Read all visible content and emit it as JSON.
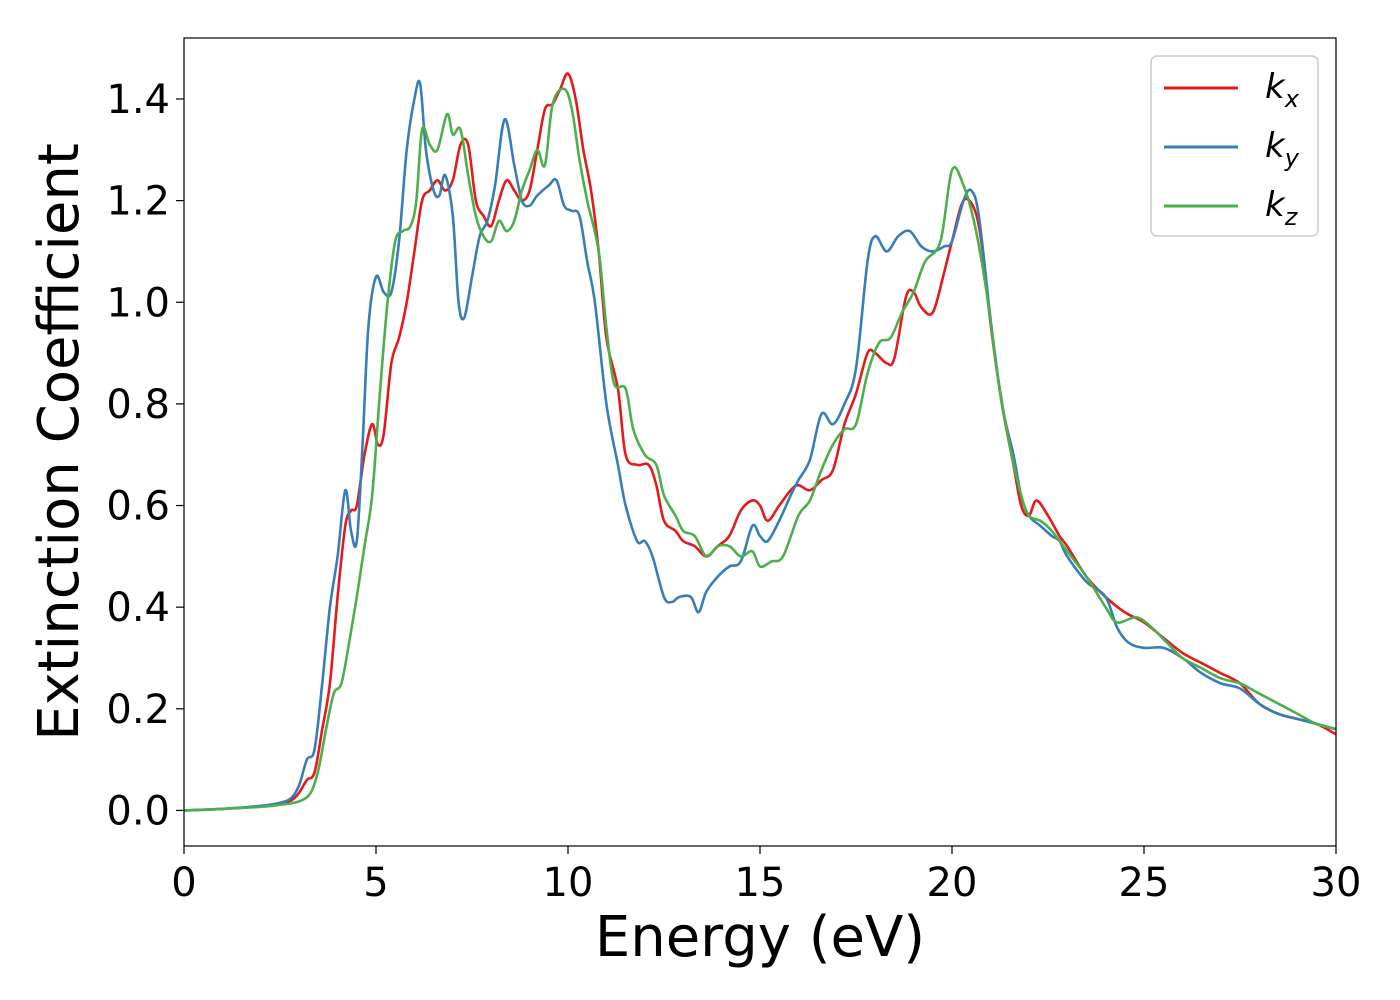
{
  "chart_data": {
    "type": "line",
    "title": "",
    "xlabel": "Energy (eV)",
    "ylabel": "Extinction Coefficient",
    "xlim": [
      0,
      30
    ],
    "ylim": [
      -0.07,
      1.52
    ],
    "xticks": [
      0,
      5,
      10,
      15,
      20,
      25,
      30
    ],
    "yticks": [
      0.0,
      0.2,
      0.4,
      0.6,
      0.8,
      1.0,
      1.2,
      1.4
    ],
    "ytick_labels": [
      "0.0",
      "0.2",
      "0.4",
      "0.6",
      "0.8",
      "1.0",
      "1.2",
      "1.4"
    ],
    "grid": false,
    "legend_position": "top-right",
    "series": [
      {
        "name": "kx",
        "label_base": "k",
        "label_sub": "x",
        "color": "#e41a1c",
        "points": [
          [
            0,
            0.0
          ],
          [
            1,
            0.003
          ],
          [
            2,
            0.008
          ],
          [
            2.5,
            0.013
          ],
          [
            2.8,
            0.02
          ],
          [
            3.0,
            0.035
          ],
          [
            3.2,
            0.06
          ],
          [
            3.4,
            0.075
          ],
          [
            3.6,
            0.16
          ],
          [
            3.8,
            0.25
          ],
          [
            4.0,
            0.42
          ],
          [
            4.2,
            0.56
          ],
          [
            4.35,
            0.59
          ],
          [
            4.5,
            0.6
          ],
          [
            4.7,
            0.7
          ],
          [
            4.9,
            0.76
          ],
          [
            5.05,
            0.72
          ],
          [
            5.2,
            0.74
          ],
          [
            5.4,
            0.88
          ],
          [
            5.6,
            0.93
          ],
          [
            5.8,
            1.0
          ],
          [
            6.0,
            1.1
          ],
          [
            6.2,
            1.2
          ],
          [
            6.4,
            1.22
          ],
          [
            6.6,
            1.24
          ],
          [
            6.8,
            1.22
          ],
          [
            7.0,
            1.24
          ],
          [
            7.2,
            1.31
          ],
          [
            7.4,
            1.31
          ],
          [
            7.6,
            1.2
          ],
          [
            7.8,
            1.17
          ],
          [
            8.0,
            1.15
          ],
          [
            8.2,
            1.2
          ],
          [
            8.4,
            1.24
          ],
          [
            8.6,
            1.22
          ],
          [
            8.8,
            1.2
          ],
          [
            9.0,
            1.22
          ],
          [
            9.2,
            1.3
          ],
          [
            9.4,
            1.38
          ],
          [
            9.6,
            1.39
          ],
          [
            9.8,
            1.42
          ],
          [
            10.0,
            1.45
          ],
          [
            10.2,
            1.4
          ],
          [
            10.4,
            1.3
          ],
          [
            10.6,
            1.22
          ],
          [
            10.8,
            1.1
          ],
          [
            11.0,
            0.93
          ],
          [
            11.3,
            0.83
          ],
          [
            11.5,
            0.7
          ],
          [
            11.8,
            0.68
          ],
          [
            12.1,
            0.68
          ],
          [
            12.3,
            0.64
          ],
          [
            12.5,
            0.57
          ],
          [
            12.8,
            0.55
          ],
          [
            13.0,
            0.53
          ],
          [
            13.3,
            0.52
          ],
          [
            13.6,
            0.5
          ],
          [
            13.9,
            0.52
          ],
          [
            14.2,
            0.54
          ],
          [
            14.5,
            0.59
          ],
          [
            14.8,
            0.61
          ],
          [
            15.0,
            0.6
          ],
          [
            15.2,
            0.57
          ],
          [
            15.5,
            0.6
          ],
          [
            15.8,
            0.63
          ],
          [
            16.0,
            0.64
          ],
          [
            16.3,
            0.63
          ],
          [
            16.6,
            0.65
          ],
          [
            16.9,
            0.67
          ],
          [
            17.2,
            0.76
          ],
          [
            17.5,
            0.82
          ],
          [
            17.8,
            0.9
          ],
          [
            18.0,
            0.9
          ],
          [
            18.3,
            0.88
          ],
          [
            18.5,
            0.89
          ],
          [
            18.8,
            1.01
          ],
          [
            19.0,
            1.02
          ],
          [
            19.2,
            0.99
          ],
          [
            19.5,
            0.98
          ],
          [
            19.8,
            1.06
          ],
          [
            20.0,
            1.12
          ],
          [
            20.3,
            1.2
          ],
          [
            20.6,
            1.18
          ],
          [
            20.8,
            1.1
          ],
          [
            21.0,
            0.96
          ],
          [
            21.3,
            0.8
          ],
          [
            21.6,
            0.68
          ],
          [
            21.8,
            0.6
          ],
          [
            22.0,
            0.58
          ],
          [
            22.2,
            0.61
          ],
          [
            22.5,
            0.58
          ],
          [
            22.8,
            0.54
          ],
          [
            23.0,
            0.52
          ],
          [
            23.5,
            0.46
          ],
          [
            24.0,
            0.42
          ],
          [
            24.5,
            0.39
          ],
          [
            25.0,
            0.37
          ],
          [
            25.5,
            0.34
          ],
          [
            26.0,
            0.31
          ],
          [
            26.5,
            0.29
          ],
          [
            27.0,
            0.27
          ],
          [
            27.5,
            0.25
          ],
          [
            28.0,
            0.21
          ],
          [
            28.5,
            0.19
          ],
          [
            29.0,
            0.18
          ],
          [
            29.5,
            0.17
          ],
          [
            30.0,
            0.15
          ]
        ]
      },
      {
        "name": "ky",
        "label_base": "k",
        "label_sub": "y",
        "color": "#377eb8",
        "points": [
          [
            0,
            0.0
          ],
          [
            1,
            0.003
          ],
          [
            2,
            0.009
          ],
          [
            2.5,
            0.015
          ],
          [
            2.8,
            0.025
          ],
          [
            3.0,
            0.05
          ],
          [
            3.2,
            0.1
          ],
          [
            3.4,
            0.12
          ],
          [
            3.6,
            0.25
          ],
          [
            3.8,
            0.4
          ],
          [
            4.0,
            0.5
          ],
          [
            4.2,
            0.63
          ],
          [
            4.35,
            0.55
          ],
          [
            4.5,
            0.53
          ],
          [
            4.65,
            0.72
          ],
          [
            4.8,
            0.95
          ],
          [
            5.0,
            1.05
          ],
          [
            5.2,
            1.02
          ],
          [
            5.4,
            1.02
          ],
          [
            5.6,
            1.12
          ],
          [
            5.8,
            1.3
          ],
          [
            6.0,
            1.4
          ],
          [
            6.15,
            1.43
          ],
          [
            6.3,
            1.3
          ],
          [
            6.5,
            1.22
          ],
          [
            6.65,
            1.21
          ],
          [
            6.8,
            1.25
          ],
          [
            7.0,
            1.17
          ],
          [
            7.15,
            1.0
          ],
          [
            7.3,
            0.97
          ],
          [
            7.5,
            1.05
          ],
          [
            7.7,
            1.13
          ],
          [
            7.9,
            1.16
          ],
          [
            8.1,
            1.23
          ],
          [
            8.35,
            1.36
          ],
          [
            8.6,
            1.27
          ],
          [
            8.8,
            1.2
          ],
          [
            9.0,
            1.19
          ],
          [
            9.2,
            1.21
          ],
          [
            9.5,
            1.23
          ],
          [
            9.7,
            1.24
          ],
          [
            9.9,
            1.19
          ],
          [
            10.1,
            1.18
          ],
          [
            10.3,
            1.17
          ],
          [
            10.5,
            1.08
          ],
          [
            10.7,
            1.0
          ],
          [
            11.0,
            0.8
          ],
          [
            11.3,
            0.68
          ],
          [
            11.5,
            0.6
          ],
          [
            11.8,
            0.53
          ],
          [
            12.0,
            0.53
          ],
          [
            12.2,
            0.5
          ],
          [
            12.5,
            0.42
          ],
          [
            12.7,
            0.41
          ],
          [
            12.9,
            0.42
          ],
          [
            13.2,
            0.42
          ],
          [
            13.4,
            0.39
          ],
          [
            13.6,
            0.43
          ],
          [
            13.9,
            0.46
          ],
          [
            14.2,
            0.48
          ],
          [
            14.5,
            0.49
          ],
          [
            14.8,
            0.56
          ],
          [
            15.0,
            0.54
          ],
          [
            15.2,
            0.53
          ],
          [
            15.5,
            0.57
          ],
          [
            15.8,
            0.62
          ],
          [
            16.0,
            0.65
          ],
          [
            16.3,
            0.69
          ],
          [
            16.6,
            0.78
          ],
          [
            16.9,
            0.76
          ],
          [
            17.2,
            0.8
          ],
          [
            17.5,
            0.87
          ],
          [
            17.8,
            1.08
          ],
          [
            18.0,
            1.13
          ],
          [
            18.3,
            1.1
          ],
          [
            18.6,
            1.13
          ],
          [
            18.9,
            1.14
          ],
          [
            19.2,
            1.11
          ],
          [
            19.5,
            1.1
          ],
          [
            19.8,
            1.11
          ],
          [
            20.0,
            1.12
          ],
          [
            20.3,
            1.2
          ],
          [
            20.5,
            1.22
          ],
          [
            20.7,
            1.17
          ],
          [
            21.0,
            0.97
          ],
          [
            21.3,
            0.8
          ],
          [
            21.6,
            0.7
          ],
          [
            21.8,
            0.62
          ],
          [
            22.0,
            0.58
          ],
          [
            22.3,
            0.56
          ],
          [
            22.6,
            0.54
          ],
          [
            22.8,
            0.53
          ],
          [
            23.0,
            0.5
          ],
          [
            23.5,
            0.45
          ],
          [
            24.0,
            0.42
          ],
          [
            24.3,
            0.36
          ],
          [
            24.6,
            0.33
          ],
          [
            25.0,
            0.32
          ],
          [
            25.5,
            0.32
          ],
          [
            26.0,
            0.3
          ],
          [
            26.5,
            0.27
          ],
          [
            27.0,
            0.25
          ],
          [
            27.5,
            0.24
          ],
          [
            28.0,
            0.21
          ],
          [
            28.5,
            0.19
          ],
          [
            29.0,
            0.18
          ],
          [
            29.5,
            0.17
          ],
          [
            30.0,
            0.16
          ]
        ]
      },
      {
        "name": "kz",
        "label_base": "k",
        "label_sub": "z",
        "color": "#4daf4a",
        "points": [
          [
            0,
            0.0
          ],
          [
            1,
            0.003
          ],
          [
            2,
            0.007
          ],
          [
            2.5,
            0.011
          ],
          [
            3.0,
            0.018
          ],
          [
            3.3,
            0.035
          ],
          [
            3.5,
            0.08
          ],
          [
            3.7,
            0.16
          ],
          [
            3.9,
            0.23
          ],
          [
            4.1,
            0.25
          ],
          [
            4.3,
            0.33
          ],
          [
            4.5,
            0.42
          ],
          [
            4.7,
            0.52
          ],
          [
            4.9,
            0.62
          ],
          [
            5.1,
            0.82
          ],
          [
            5.3,
            1.0
          ],
          [
            5.5,
            1.12
          ],
          [
            5.7,
            1.14
          ],
          [
            5.9,
            1.15
          ],
          [
            6.05,
            1.2
          ],
          [
            6.2,
            1.34
          ],
          [
            6.4,
            1.31
          ],
          [
            6.6,
            1.3
          ],
          [
            6.85,
            1.37
          ],
          [
            7.0,
            1.33
          ],
          [
            7.2,
            1.34
          ],
          [
            7.4,
            1.25
          ],
          [
            7.6,
            1.17
          ],
          [
            7.8,
            1.13
          ],
          [
            8.0,
            1.12
          ],
          [
            8.2,
            1.16
          ],
          [
            8.4,
            1.14
          ],
          [
            8.6,
            1.16
          ],
          [
            8.8,
            1.22
          ],
          [
            9.0,
            1.26
          ],
          [
            9.2,
            1.3
          ],
          [
            9.4,
            1.27
          ],
          [
            9.6,
            1.39
          ],
          [
            9.9,
            1.42
          ],
          [
            10.1,
            1.38
          ],
          [
            10.3,
            1.28
          ],
          [
            10.5,
            1.2
          ],
          [
            10.8,
            1.1
          ],
          [
            11.0,
            0.95
          ],
          [
            11.2,
            0.84
          ],
          [
            11.5,
            0.83
          ],
          [
            11.7,
            0.75
          ],
          [
            12.0,
            0.7
          ],
          [
            12.3,
            0.68
          ],
          [
            12.5,
            0.62
          ],
          [
            12.8,
            0.58
          ],
          [
            13.0,
            0.55
          ],
          [
            13.3,
            0.54
          ],
          [
            13.6,
            0.5
          ],
          [
            13.9,
            0.52
          ],
          [
            14.2,
            0.52
          ],
          [
            14.5,
            0.5
          ],
          [
            14.8,
            0.51
          ],
          [
            15.0,
            0.48
          ],
          [
            15.3,
            0.49
          ],
          [
            15.6,
            0.5
          ],
          [
            16.0,
            0.58
          ],
          [
            16.3,
            0.61
          ],
          [
            16.6,
            0.67
          ],
          [
            16.9,
            0.72
          ],
          [
            17.2,
            0.75
          ],
          [
            17.5,
            0.76
          ],
          [
            17.8,
            0.86
          ],
          [
            18.1,
            0.92
          ],
          [
            18.4,
            0.93
          ],
          [
            18.7,
            0.98
          ],
          [
            19.0,
            1.02
          ],
          [
            19.3,
            1.08
          ],
          [
            19.7,
            1.12
          ],
          [
            20.0,
            1.26
          ],
          [
            20.3,
            1.23
          ],
          [
            20.6,
            1.15
          ],
          [
            20.9,
            1.02
          ],
          [
            21.2,
            0.85
          ],
          [
            21.5,
            0.72
          ],
          [
            21.8,
            0.62
          ],
          [
            22.0,
            0.58
          ],
          [
            22.3,
            0.57
          ],
          [
            22.6,
            0.55
          ],
          [
            23.0,
            0.51
          ],
          [
            23.5,
            0.46
          ],
          [
            24.0,
            0.4
          ],
          [
            24.3,
            0.37
          ],
          [
            24.8,
            0.38
          ],
          [
            25.2,
            0.36
          ],
          [
            25.6,
            0.33
          ],
          [
            26.0,
            0.3
          ],
          [
            26.5,
            0.28
          ],
          [
            27.0,
            0.26
          ],
          [
            27.5,
            0.25
          ],
          [
            28.0,
            0.23
          ],
          [
            28.5,
            0.21
          ],
          [
            29.0,
            0.19
          ],
          [
            29.5,
            0.17
          ],
          [
            30.0,
            0.16
          ]
        ]
      }
    ]
  }
}
